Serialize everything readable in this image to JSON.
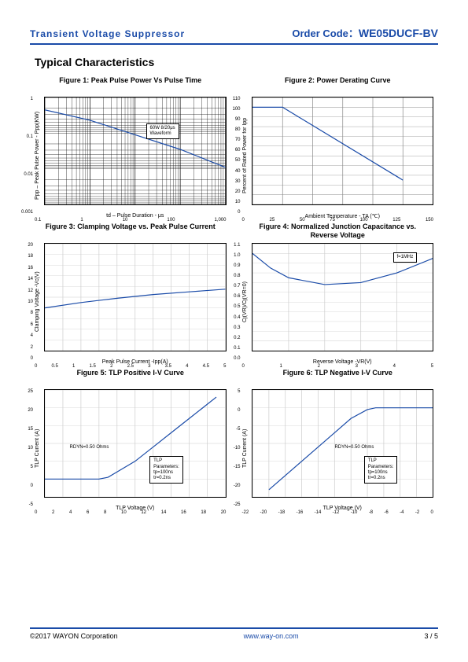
{
  "header": {
    "left": "Transient  Voltage  Suppressor",
    "right_label": "Order  Code：",
    "right_code": "WE05DUCF-BV"
  },
  "section_title": "Typical Characteristics",
  "charts": {
    "fig1": {
      "title": "Figure 1:  Peak Pulse Power Vs Pulse Time",
      "type": "line",
      "xlabel": "td  –  Pulse Duration  - μs",
      "ylabel": "Ppp –  Peak Pulse Power - Ppp(KW)",
      "xscale": "log",
      "yscale": "log",
      "xlim": [
        0.1,
        1000
      ],
      "ylim": [
        0.001,
        1
      ],
      "xticks": [
        "0.1",
        "1",
        "10",
        "100",
        "1,000"
      ],
      "yticks": [
        "1",
        "0.1",
        "0.01",
        "0.001"
      ],
      "line_color": "#1a4ba8",
      "grid_color": "#000000",
      "annot": {
        "text_l1": "60W 8/20μs",
        "text_l2": "Waveform",
        "top_pct": 24,
        "left_pct": 56
      },
      "points": [
        [
          0.1,
          0.45
        ],
        [
          1,
          0.23
        ],
        [
          10,
          0.09
        ],
        [
          100,
          0.035
        ],
        [
          1000,
          0.011
        ]
      ]
    },
    "fig2": {
      "title": "Figure 2:  Power Derating Curve",
      "type": "line",
      "xlabel": "Ambient Temperature  - TA (℃)",
      "ylabel": "Percent of Rated Power for Ipp",
      "xlim": [
        0,
        150
      ],
      "ylim": [
        0,
        110
      ],
      "xticks": [
        "0",
        "25",
        "50",
        "75",
        "100",
        "125",
        "150"
      ],
      "yticks": [
        "110",
        "100",
        "90",
        "80",
        "70",
        "60",
        "50",
        "40",
        "30",
        "20",
        "10",
        "0"
      ],
      "line_color": "#1a4ba8",
      "grid_color": "#888888",
      "points": [
        [
          0,
          100
        ],
        [
          25,
          100
        ],
        [
          125,
          25
        ]
      ]
    },
    "fig3": {
      "title": "Figure 3:  Clamping Voltage vs. Peak Pulse Current",
      "type": "line",
      "xlabel": "Peak Pulse Current    -Ipp(A)",
      "ylabel": "Clamping Voltage -Vc(V)",
      "xlim": [
        0,
        5
      ],
      "ylim": [
        0,
        20
      ],
      "xticks": [
        "0",
        "0.5",
        "1",
        "1.5",
        "2",
        "2.5",
        "3",
        "3.5",
        "4",
        "4.5",
        "5"
      ],
      "yticks": [
        "20",
        "18",
        "16",
        "14",
        "12",
        "10",
        "8",
        "6",
        "4",
        "2",
        "0"
      ],
      "line_color": "#1a4ba8",
      "grid_color": "#cccccc",
      "points": [
        [
          0,
          8
        ],
        [
          1,
          9
        ],
        [
          2,
          9.8
        ],
        [
          3,
          10.5
        ],
        [
          4,
          11
        ],
        [
          5,
          11.5
        ]
      ]
    },
    "fig4": {
      "title": "Figure 4:  Normalized Junction Capacitance vs. Reverse Voltage",
      "type": "line",
      "xlabel": "Reverse Voltage    -VR(V)",
      "ylabel": "Cj(VR)/Cj(VR=0)",
      "xlim": [
        0,
        5
      ],
      "ylim": [
        0,
        1.1
      ],
      "xticks": [
        "0",
        "1",
        "2",
        "3",
        "4",
        "5"
      ],
      "yticks": [
        "1.1",
        "1.0",
        "0.9",
        "0.8",
        "0.7",
        "0.6",
        "0.5",
        "0.4",
        "0.3",
        "0.2",
        "0.1",
        "0.0"
      ],
      "line_color": "#1a4ba8",
      "grid_color": "#cccccc",
      "annot": {
        "text_l1": "f=1MHz",
        "text_l2": "",
        "top_pct": 8,
        "left_pct": 78
      },
      "points": [
        [
          0,
          1.0
        ],
        [
          0.5,
          0.85
        ],
        [
          1,
          0.75
        ],
        [
          2,
          0.68
        ],
        [
          3,
          0.7
        ],
        [
          4,
          0.8
        ],
        [
          5,
          0.95
        ]
      ]
    },
    "fig5": {
      "title": "Figure 5:  TLP Positive I-V Curve",
      "type": "line",
      "xlabel": "TLP Voltage (V)",
      "ylabel": "TLP Current (A)",
      "xlim": [
        0,
        20
      ],
      "ylim": [
        -5,
        25
      ],
      "xticks": [
        "0",
        "2",
        "4",
        "6",
        "8",
        "10",
        "12",
        "14",
        "16",
        "18",
        "20"
      ],
      "yticks": [
        "25",
        "20",
        "15",
        "10",
        "5",
        "0",
        "-5"
      ],
      "line_color": "#1a4ba8",
      "grid_color": "#cccccc",
      "annot1": {
        "text": "RDYN=0.50 Ohms",
        "top_pct": 50,
        "left_pct": 12
      },
      "annot2": {
        "text_l1": "TLP",
        "text_l2": "Parameters:",
        "text_l3": "tp=100ns",
        "text_l4": "tr=0.2ns",
        "top_pct": 62,
        "left_pct": 58
      },
      "points": [
        [
          0,
          0
        ],
        [
          6,
          0
        ],
        [
          7,
          0.5
        ],
        [
          8,
          2
        ],
        [
          10,
          5
        ],
        [
          12,
          9
        ],
        [
          14,
          13
        ],
        [
          16,
          17
        ],
        [
          18,
          21
        ],
        [
          19,
          23
        ]
      ]
    },
    "fig6": {
      "title": "Figure 6:  TLP Negative I-V Curve",
      "type": "line",
      "xlabel": "TLP Voltage (V)",
      "ylabel": "TLP Current (A)",
      "xlim": [
        -22,
        0
      ],
      "ylim": [
        -25,
        5
      ],
      "xticks": [
        "-22",
        "-20",
        "-18",
        "-16",
        "-14",
        "-12",
        "-10",
        "-8",
        "-6",
        "-4",
        "-2",
        "0"
      ],
      "yticks": [
        "5",
        "0",
        "-5",
        "-10",
        "-15",
        "-20",
        "-25"
      ],
      "line_color": "#1a4ba8",
      "grid_color": "#cccccc",
      "annot1": {
        "text": "RDYN=0.50 Ohms",
        "top_pct": 50,
        "left_pct": 44
      },
      "annot2": {
        "text_l1": "TLP",
        "text_l2": "Parameters:",
        "text_l3": "tp=100ns",
        "text_l4": "tr=0.2ns",
        "top_pct": 62,
        "left_pct": 62
      },
      "points": [
        [
          -20,
          -23
        ],
        [
          -18,
          -19
        ],
        [
          -16,
          -15
        ],
        [
          -14,
          -11
        ],
        [
          -12,
          -7
        ],
        [
          -10,
          -3
        ],
        [
          -8,
          -0.5
        ],
        [
          -7,
          0
        ],
        [
          0,
          0
        ]
      ]
    }
  },
  "footer": {
    "left": "©2017 WAYON Corporation",
    "center": "www.way-on.com",
    "right": "3 / 5"
  }
}
